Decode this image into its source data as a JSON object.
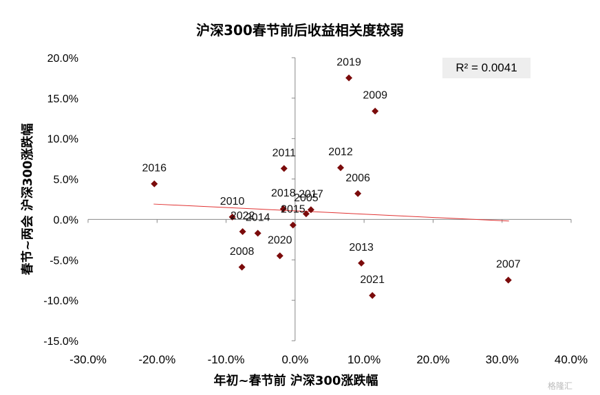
{
  "chart_data": {
    "type": "scatter",
    "title": "沪深300春节前后收益相关度较弱",
    "xlabel": "年初~春节前 沪深300涨跌幅",
    "ylabel": "春节~两会 沪深300涨跌幅",
    "xlim": [
      -30,
      40
    ],
    "ylim": [
      -15,
      20
    ],
    "xticks": [
      "-30.0%",
      "-20.0%",
      "-10.0%",
      "0.0%",
      "10.0%",
      "20.0%",
      "30.0%",
      "40.0%"
    ],
    "yticks": [
      "20.0%",
      "15.0%",
      "10.0%",
      "5.0%",
      "0.0%",
      "-5.0%",
      "-10.0%",
      "-15.0%"
    ],
    "point_color": "#7b0b0b",
    "trendline_color": "#e03030",
    "r2_label": "R² = 0.0041",
    "trendline": {
      "x": [
        -20.5,
        31.0
      ],
      "y": [
        1.9,
        -0.2
      ]
    },
    "points": [
      {
        "label": "2019",
        "x": 7.8,
        "y": 17.5
      },
      {
        "label": "2009",
        "x": 11.6,
        "y": 13.4
      },
      {
        "label": "2011",
        "x": -1.6,
        "y": 6.3
      },
      {
        "label": "2012",
        "x": 6.6,
        "y": 6.4
      },
      {
        "label": "2016",
        "x": -20.4,
        "y": 4.4
      },
      {
        "label": "2006",
        "x": 9.1,
        "y": 3.2
      },
      {
        "label": "2018",
        "x": -1.7,
        "y": 1.3
      },
      {
        "label": "2017",
        "x": 2.3,
        "y": 1.2
      },
      {
        "label": "2005",
        "x": 1.6,
        "y": 0.7
      },
      {
        "label": "2015",
        "x": -0.3,
        "y": -0.7
      },
      {
        "label": "2010",
        "x": -9.1,
        "y": 0.3
      },
      {
        "label": "2022",
        "x": -7.6,
        "y": -1.5
      },
      {
        "label": "2014",
        "x": -5.4,
        "y": -1.7
      },
      {
        "label": "2020",
        "x": -2.2,
        "y": -4.5
      },
      {
        "label": "2008",
        "x": -7.7,
        "y": -5.9
      },
      {
        "label": "2013",
        "x": 9.6,
        "y": -5.4
      },
      {
        "label": "2021",
        "x": 11.2,
        "y": -9.4
      },
      {
        "label": "2007",
        "x": 30.9,
        "y": -7.5
      }
    ]
  },
  "watermark": "格隆汇"
}
